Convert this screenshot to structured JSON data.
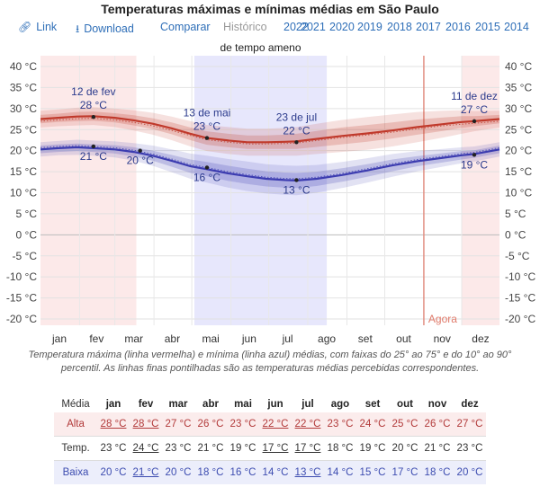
{
  "title": "Temperaturas máximas e mínimas médias em São Paulo",
  "toolbar": {
    "link": "Link",
    "download": "Download",
    "compare": "Comparar",
    "history": "Histórico",
    "years": [
      "2022",
      "2021",
      "2020",
      "2019",
      "2018",
      "2017",
      "2016",
      "2015",
      "2014"
    ]
  },
  "colors": {
    "max_line": "#c0392b",
    "min_line": "#3c3cb0",
    "hot_season": "#fbe1e1",
    "cool_season": "#e3e3fb"
  },
  "chart_data": {
    "type": "line",
    "title": "Temperaturas máximas e mínimas médias em São Paulo",
    "months": [
      "jan",
      "fev",
      "mar",
      "abr",
      "mai",
      "jun",
      "jul",
      "ago",
      "set",
      "out",
      "nov",
      "dez"
    ],
    "y_ticks": [
      40,
      35,
      30,
      25,
      20,
      15,
      10,
      5,
      0,
      -5,
      -10,
      -15,
      -20
    ],
    "y_unit": "°C",
    "ylim": [
      -22,
      42
    ],
    "xlim": [
      1,
      365
    ],
    "season_label": "de tempo ameno",
    "today_label": "Agora",
    "today_day": 305,
    "hot_season_days": [
      [
        1,
        77
      ],
      [
        335,
        365
      ]
    ],
    "cool_season_days": [
      [
        123,
        228
      ]
    ],
    "series": [
      {
        "name": "Alta",
        "days": [
          1,
          15,
          30,
          43,
          60,
          75,
          90,
          105,
          120,
          133,
          150,
          165,
          180,
          195,
          204,
          220,
          240,
          260,
          280,
          300,
          320,
          335,
          345,
          365
        ],
        "values": [
          27.5,
          27.8,
          28.1,
          28.2,
          27.8,
          27.2,
          26.4,
          25.3,
          24.0,
          23.0,
          22.4,
          22.0,
          22.0,
          22.1,
          22.2,
          22.8,
          23.5,
          24.1,
          24.8,
          25.6,
          26.3,
          26.8,
          27.0,
          27.5
        ],
        "p25_p75": [
          1.0,
          1.0,
          1.1,
          1.1,
          1.1,
          1.2,
          1.3,
          1.4,
          1.5,
          1.6,
          1.6,
          1.6,
          1.6,
          1.7,
          1.8,
          1.9,
          2.0,
          2.0,
          1.9,
          1.8,
          1.6,
          1.4,
          1.2,
          1.0
        ],
        "p10_p90": [
          2.0,
          2.0,
          2.1,
          2.1,
          2.2,
          2.4,
          2.6,
          2.8,
          3.0,
          3.1,
          3.2,
          3.2,
          3.2,
          3.3,
          3.4,
          3.6,
          3.8,
          3.9,
          3.8,
          3.6,
          3.2,
          2.8,
          2.4,
          2.0
        ],
        "feels_like": [
          27.0,
          27.3,
          27.6,
          27.7,
          27.3,
          26.7,
          25.9,
          24.8,
          23.6,
          22.6,
          22.0,
          21.6,
          21.6,
          21.7,
          21.8,
          22.4,
          23.1,
          23.7,
          24.4,
          25.2,
          25.9,
          26.3,
          26.5,
          27.0
        ]
      },
      {
        "name": "Baixa",
        "days": [
          1,
          15,
          30,
          43,
          60,
          75,
          90,
          105,
          120,
          133,
          150,
          165,
          180,
          195,
          204,
          220,
          240,
          260,
          280,
          300,
          320,
          335,
          345,
          365
        ],
        "values": [
          20.3,
          20.6,
          20.8,
          20.6,
          20.3,
          19.7,
          18.8,
          17.6,
          16.3,
          15.6,
          14.6,
          13.9,
          13.3,
          13.0,
          12.9,
          13.3,
          14.2,
          15.3,
          16.5,
          17.5,
          18.3,
          18.9,
          19.2,
          20.3
        ],
        "p25_p75": [
          0.9,
          0.9,
          0.9,
          0.9,
          1.0,
          1.1,
          1.2,
          1.4,
          1.6,
          1.7,
          1.8,
          1.8,
          1.8,
          1.8,
          1.8,
          1.7,
          1.6,
          1.5,
          1.4,
          1.2,
          1.1,
          1.0,
          0.9,
          0.9
        ],
        "p10_p90": [
          1.7,
          1.7,
          1.8,
          1.8,
          1.9,
          2.1,
          2.4,
          2.7,
          3.0,
          3.2,
          3.4,
          3.5,
          3.5,
          3.5,
          3.5,
          3.3,
          3.1,
          2.9,
          2.7,
          2.4,
          2.1,
          1.9,
          1.8,
          1.7
        ],
        "feels_like": [
          20.7,
          21.0,
          21.2,
          21.0,
          20.7,
          20.1,
          19.2,
          18.0,
          16.7,
          16.0,
          15.0,
          14.3,
          13.7,
          13.4,
          13.3,
          13.7,
          14.6,
          15.7,
          16.9,
          17.9,
          18.7,
          19.3,
          19.6,
          20.7
        ]
      }
    ],
    "annotations": [
      {
        "date": "12 de fev",
        "day": 43,
        "value": 28,
        "label": "28 °C",
        "series": "Alta",
        "position": "above"
      },
      {
        "day": 43,
        "value": 21,
        "label": "21 °C",
        "series": "Baixa",
        "position": "below"
      },
      {
        "day": 80,
        "value": 20,
        "label": "20 °C",
        "series": "Baixa",
        "position": "below"
      },
      {
        "date": "13 de mai",
        "day": 133,
        "value": 23,
        "label": "23 °C",
        "series": "Alta",
        "position": "above"
      },
      {
        "day": 133,
        "value": 16,
        "label": "16 °C",
        "series": "Baixa",
        "position": "below"
      },
      {
        "date": "23 de jul",
        "day": 204,
        "value": 22,
        "label": "22 °C",
        "series": "Alta",
        "position": "above"
      },
      {
        "day": 204,
        "value": 13,
        "label": "13 °C",
        "series": "Baixa",
        "position": "below"
      },
      {
        "date": "11 de dez",
        "day": 345,
        "value": 27,
        "label": "27 °C",
        "series": "Alta",
        "position": "above"
      },
      {
        "day": 345,
        "value": 19,
        "label": "19 °C",
        "series": "Baixa",
        "position": "below"
      }
    ]
  },
  "caption": "Temperatura máxima (linha vermelha) e mínima (linha azul) médias, com faixas do 25° ao 75° e do 10° ao 90° percentil. As linhas finas pontilhadas são as temperaturas médias percebidas correspondentes.",
  "summary_table": {
    "header": "Média",
    "months": [
      "jan",
      "fev",
      "mar",
      "abr",
      "mai",
      "jun",
      "jul",
      "ago",
      "set",
      "out",
      "nov",
      "dez"
    ],
    "rows": [
      {
        "label": "Alta",
        "values": [
          "28 °C",
          "28 °C",
          "27 °C",
          "26 °C",
          "23 °C",
          "22 °C",
          "22 °C",
          "23 °C",
          "24 °C",
          "25 °C",
          "26 °C",
          "27 °C"
        ],
        "underline": [
          0,
          1,
          5,
          6
        ]
      },
      {
        "label": "Temp.",
        "values": [
          "23 °C",
          "24 °C",
          "23 °C",
          "21 °C",
          "19 °C",
          "17 °C",
          "17 °C",
          "18 °C",
          "19 °C",
          "20 °C",
          "21 °C",
          "23 °C"
        ],
        "underline": [
          1,
          5,
          6
        ]
      },
      {
        "label": "Baixa",
        "values": [
          "20 °C",
          "21 °C",
          "20 °C",
          "18 °C",
          "16 °C",
          "14 °C",
          "13 °C",
          "14 °C",
          "15 °C",
          "17 °C",
          "18 °C",
          "20 °C"
        ],
        "underline": [
          1,
          6
        ]
      }
    ]
  }
}
